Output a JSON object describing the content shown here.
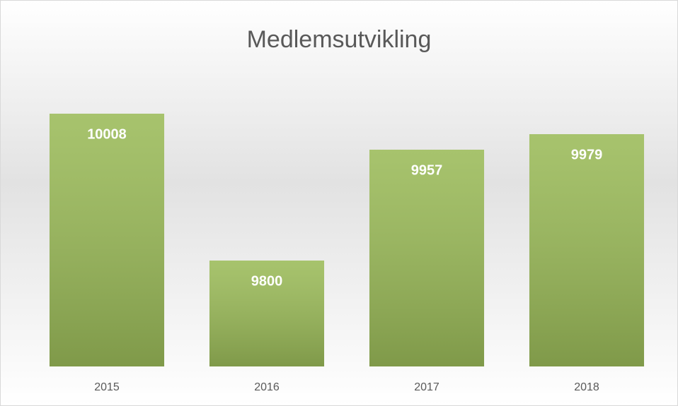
{
  "chart_data": {
    "type": "bar",
    "title": "Medlemsutvikling",
    "categories": [
      "2015",
      "2016",
      "2017",
      "2018"
    ],
    "values": [
      10008,
      9800,
      9957,
      9979
    ],
    "color": "#9bbb59",
    "ylim": [
      9650,
      10050
    ],
    "grid": false
  }
}
